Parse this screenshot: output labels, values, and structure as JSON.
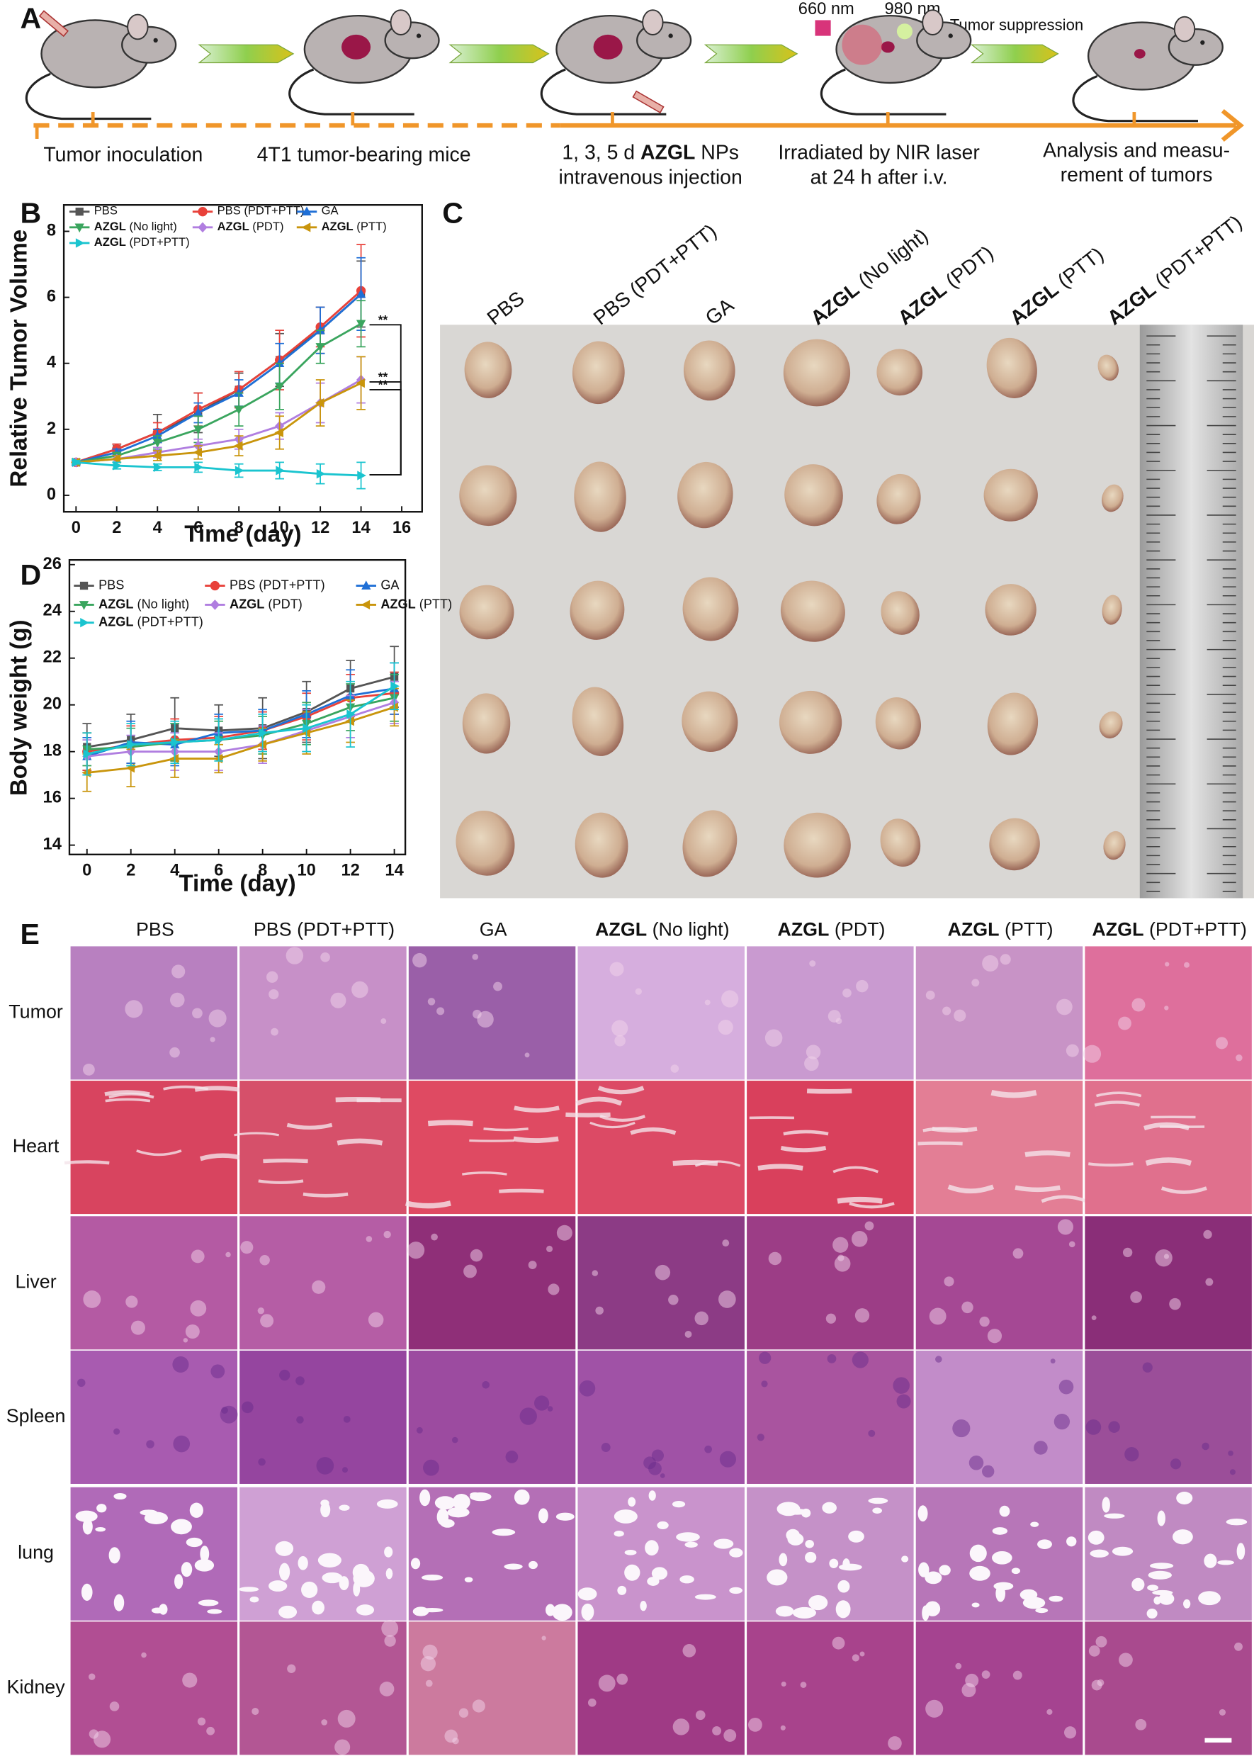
{
  "panel_labels": [
    "A",
    "B",
    "C",
    "D",
    "E"
  ],
  "panel_a": {
    "laser_labels": [
      "660 nm",
      "980 nm"
    ],
    "arrow_label": "Tumor suppression",
    "steps": [
      [
        "Tumor inoculation"
      ],
      [
        "4T1 tumor-bearing mice"
      ],
      [
        "1, 3, 5 d AZGL NPs",
        "intravenous injection"
      ],
      [
        "Irradiated by NIR laser",
        "at 24 h after i.v."
      ],
      [
        "Analysis and measu-",
        "rement of tumors"
      ]
    ]
  },
  "chart_data": [
    {
      "type": "line",
      "x_label": "Time (day)",
      "y_label": "Relative Tumor Volume",
      "x": [
        0,
        2,
        4,
        6,
        8,
        10,
        12,
        14
      ],
      "xlim": [
        -0.6,
        17
      ],
      "xticks": [
        0,
        2,
        4,
        6,
        8,
        10,
        12,
        14,
        16
      ],
      "ylim": [
        -0.5,
        8.8
      ],
      "yticks": [
        0,
        2,
        4,
        6,
        8
      ],
      "annotations": [
        "**",
        "**",
        "**"
      ],
      "series": [
        {
          "name": "PBS",
          "color": "#555555",
          "marker": "square",
          "values": [
            1,
            1.4,
            1.9,
            2.5,
            3.2,
            4.1,
            5.0,
            6.1
          ],
          "errors": [
            0.05,
            0.15,
            0.55,
            0.6,
            0.5,
            0.8,
            0.7,
            1.0
          ]
        },
        {
          "name": "PBS (PDT+PTT)",
          "color": "#e8413a",
          "marker": "circle",
          "values": [
            1,
            1.4,
            1.9,
            2.6,
            3.2,
            4.1,
            5.1,
            6.2
          ],
          "errors": [
            0.05,
            0.15,
            0.3,
            0.5,
            0.55,
            0.9,
            0.6,
            1.4
          ]
        },
        {
          "name": "GA",
          "color": "#1f6fd6",
          "marker": "up",
          "values": [
            1,
            1.3,
            1.8,
            2.5,
            3.1,
            4.0,
            5.0,
            6.1
          ],
          "errors": [
            0.05,
            0.1,
            0.2,
            0.3,
            0.4,
            0.6,
            0.7,
            1.1
          ]
        },
        {
          "name": "AZGL (No light)",
          "color": "#3aa55e",
          "marker": "down",
          "values": [
            1,
            1.2,
            1.6,
            2.0,
            2.6,
            3.3,
            4.5,
            5.2
          ],
          "errors": [
            0.05,
            0.1,
            0.2,
            0.4,
            0.5,
            0.7,
            0.5,
            0.7
          ]
        },
        {
          "name": "AZGL (PDT)",
          "color": "#b07ee0",
          "marker": "diamond",
          "values": [
            1,
            1.1,
            1.3,
            1.5,
            1.7,
            2.1,
            2.8,
            3.5
          ],
          "errors": [
            0.05,
            0.1,
            0.15,
            0.2,
            0.3,
            0.4,
            0.6,
            0.7
          ]
        },
        {
          "name": "AZGL (PTT)",
          "color": "#c9950c",
          "marker": "left",
          "values": [
            1,
            1.1,
            1.2,
            1.3,
            1.5,
            1.9,
            2.8,
            3.4
          ],
          "errors": [
            0.05,
            0.1,
            0.15,
            0.2,
            0.3,
            0.5,
            0.7,
            0.8
          ]
        },
        {
          "name": "AZGL (PDT+PTT)",
          "color": "#1ac4cf",
          "marker": "right",
          "values": [
            1,
            0.9,
            0.85,
            0.85,
            0.75,
            0.75,
            0.65,
            0.6
          ],
          "errors": [
            0.05,
            0.1,
            0.1,
            0.15,
            0.2,
            0.25,
            0.3,
            0.4
          ]
        }
      ]
    },
    {
      "type": "line",
      "x_label": "Time (day)",
      "y_label": "Body weight (g)",
      "x": [
        0,
        2,
        4,
        6,
        8,
        10,
        12,
        14
      ],
      "xlim": [
        -0.8,
        14.5
      ],
      "xticks": [
        0,
        2,
        4,
        6,
        8,
        10,
        12,
        14
      ],
      "ylim": [
        13.6,
        26.2
      ],
      "yticks": [
        14,
        16,
        18,
        20,
        22,
        24,
        26
      ],
      "series": [
        {
          "name": "PBS",
          "color": "#555555",
          "marker": "square",
          "values": [
            18.2,
            18.5,
            19.0,
            18.9,
            19.0,
            19.7,
            20.7,
            21.2
          ],
          "errors": [
            1.0,
            1.1,
            1.3,
            1.1,
            1.3,
            1.3,
            1.2,
            1.3
          ]
        },
        {
          "name": "PBS (PDT+PTT)",
          "color": "#e8413a",
          "marker": "circle",
          "values": [
            18.0,
            18.3,
            18.5,
            18.6,
            18.9,
            19.5,
            20.3,
            20.5
          ],
          "errors": [
            0.8,
            0.8,
            0.9,
            0.9,
            0.8,
            1.0,
            1.0,
            0.9
          ]
        },
        {
          "name": "GA",
          "color": "#1f6fd6",
          "marker": "up",
          "values": [
            17.8,
            18.4,
            18.3,
            18.8,
            18.9,
            19.6,
            20.4,
            20.7
          ],
          "errors": [
            0.8,
            0.9,
            0.9,
            0.8,
            0.9,
            1.0,
            1.1,
            1.1
          ]
        },
        {
          "name": "AZGL (No light)",
          "color": "#3aa55e",
          "marker": "down",
          "values": [
            18.1,
            18.2,
            18.4,
            18.5,
            18.7,
            19.2,
            19.9,
            20.3
          ],
          "errors": [
            0.7,
            0.8,
            0.8,
            0.8,
            0.8,
            0.9,
            1.0,
            1.0
          ]
        },
        {
          "name": "AZGL (PDT)",
          "color": "#b07ee0",
          "marker": "diamond",
          "values": [
            17.8,
            18.0,
            18.0,
            18.0,
            18.3,
            18.9,
            19.5,
            20.1
          ],
          "errors": [
            0.7,
            0.7,
            0.8,
            0.8,
            0.8,
            0.9,
            0.9,
            0.9
          ]
        },
        {
          "name": "AZGL (PTT)",
          "color": "#c9950c",
          "marker": "left",
          "values": [
            17.1,
            17.3,
            17.7,
            17.7,
            18.3,
            18.8,
            19.3,
            19.9
          ],
          "errors": [
            0.8,
            0.8,
            0.8,
            0.6,
            0.7,
            0.9,
            0.9,
            0.8
          ]
        },
        {
          "name": "AZGL (PDT+PTT)",
          "color": "#1ac4cf",
          "marker": "right",
          "values": [
            17.9,
            18.3,
            18.4,
            18.5,
            18.8,
            19.0,
            19.6,
            20.8
          ],
          "errors": [
            0.9,
            0.9,
            0.9,
            0.9,
            0.8,
            1.0,
            1.4,
            1.0
          ]
        }
      ]
    }
  ],
  "panel_c": {
    "groups": [
      "PBS",
      "PBS (PDT+PTT)",
      "GA",
      "AZGL (No light)",
      "AZGL (PDT)",
      "AZGL (PTT)",
      "AZGL (PDT+PTT)"
    ]
  },
  "panel_e": {
    "groups": [
      "PBS",
      "PBS (PDT+PTT)",
      "GA",
      "AZGL (No light)",
      "AZGL (PDT)",
      "AZGL (PTT)",
      "AZGL (PDT+PTT)"
    ],
    "tissues": [
      "Tumor",
      "Heart",
      "Liver",
      "Spleen",
      "lung",
      "Kidney"
    ]
  }
}
